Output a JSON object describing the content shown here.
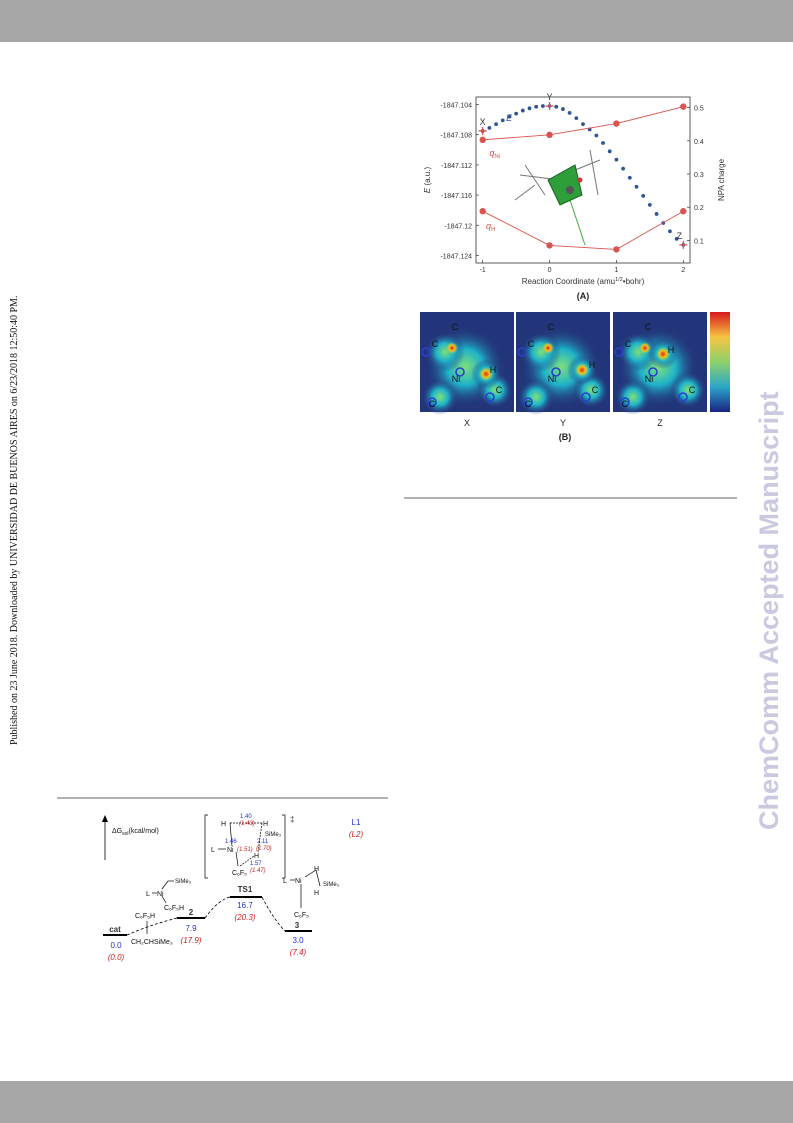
{
  "side_note": "Published on 23 June 2018. Downloaded by UNIVERSIDAD DE BUENOS AIRES on 6/23/2018 12:50:40 PM.",
  "watermark": "ChemComm Accepted Manuscript",
  "chart_data": {
    "type": "line",
    "panel_label": "(A)",
    "x_label": [
      "Reaction Coordinate (amu",
      "1/2",
      "•bohr)"
    ],
    "y_label": [
      "E",
      " (a.u.)"
    ],
    "y2_label": "NPA charge",
    "xlim": [
      -1.1,
      2.1
    ],
    "ylim": [
      -1847.125,
      -1847.103
    ],
    "y2lim": [
      0.032,
      0.532
    ],
    "xticks": [
      -1,
      0,
      1,
      2
    ],
    "yticks": [
      -1847.104,
      -1847.108,
      -1847.112,
      -1847.116,
      -1847.12,
      -1847.124
    ],
    "y2ticks": [
      0.1,
      0.2,
      0.3,
      0.4,
      0.5
    ],
    "series": [
      {
        "name": "E",
        "color": "#2f5597",
        "x": [
          -1.0,
          -0.9,
          -0.8,
          -0.7,
          -0.6,
          -0.5,
          -0.4,
          -0.3,
          -0.2,
          -0.1,
          0.0,
          0.1,
          0.2,
          0.3,
          0.4,
          0.5,
          0.6,
          0.7,
          0.8,
          0.9,
          1.0,
          1.1,
          1.2,
          1.3,
          1.4,
          1.5,
          1.6,
          1.7,
          1.8,
          1.9,
          2.0
        ],
        "values": [
          -1847.1075,
          -1847.1071,
          -1847.1066,
          -1847.1061,
          -1847.1056,
          -1847.1052,
          -1847.1048,
          -1847.1045,
          -1847.1043,
          -1847.1042,
          -1847.1042,
          -1847.1043,
          -1847.1046,
          -1847.1051,
          -1847.1058,
          -1847.1066,
          -1847.1073,
          -1847.1081,
          -1847.1091,
          -1847.1102,
          -1847.1113,
          -1847.1125,
          -1847.1137,
          -1847.1149,
          -1847.1161,
          -1847.1173,
          -1847.1185,
          -1847.1197,
          -1847.1208,
          -1847.1218,
          -1847.1226
        ]
      },
      {
        "name_main": "q",
        "name_sub": "Ni",
        "axis": "y2",
        "color": "#d9534f",
        "x": [
          -1,
          0,
          1,
          2
        ],
        "values": [
          0.403,
          0.418,
          0.452,
          0.503
        ]
      },
      {
        "name_main": "q",
        "name_sub": "H",
        "axis": "y2",
        "color": "#d9534f",
        "x": [
          -1,
          0,
          1,
          2
        ],
        "values": [
          0.188,
          0.085,
          0.073,
          0.188
        ]
      }
    ],
    "point_labels": [
      {
        "text": "X",
        "x": -1
      },
      {
        "text": "Y",
        "x": 0
      },
      {
        "text": "Z",
        "x": 2
      }
    ]
  },
  "figure_b": {
    "panel_label": "(B)",
    "panels": [
      {
        "label": "X",
        "atoms": [
          "C",
          "C",
          "Ni",
          "H",
          "C",
          "C"
        ]
      },
      {
        "label": "Y",
        "atoms": [
          "C",
          "C",
          "Ni",
          "H",
          "C",
          "C"
        ]
      },
      {
        "label": "Z",
        "atoms": [
          "C",
          "C",
          "Ni",
          "H",
          "C",
          "C"
        ]
      }
    ]
  },
  "scheme": {
    "axis_label": [
      "ΔG",
      "sol",
      "(kcal/mol)"
    ],
    "legend_blue": "L1",
    "legend_red": "(L2)",
    "levels": [
      {
        "name": "cat",
        "blue": "0.0",
        "red": "(0.0)"
      },
      {
        "name": "2",
        "blue": "7.9",
        "red": "(17.9)"
      },
      {
        "name": "TS1",
        "blue": "16.7",
        "red": "(20.3)"
      },
      {
        "name": "3",
        "blue": "3.0",
        "red": "(7.4)"
      }
    ],
    "fragments": [
      "C₆F₅H",
      "CH₂CHSiMe₃",
      "L",
      "Ni",
      "SiMe₃",
      "C₆F₅H",
      "H",
      "H",
      "SiMe₃",
      "L",
      "Ni",
      "H",
      "C₆F₅",
      "‡",
      "H",
      "L",
      "Ni",
      "SiMe₃",
      "H",
      "C₆F₅"
    ],
    "distances_blue": [
      "1.40",
      "1.46",
      "2.11",
      "1.57"
    ],
    "distances_red": [
      "(1.43)",
      "(1.51)",
      "(1.70)",
      "(1.47)"
    ]
  }
}
